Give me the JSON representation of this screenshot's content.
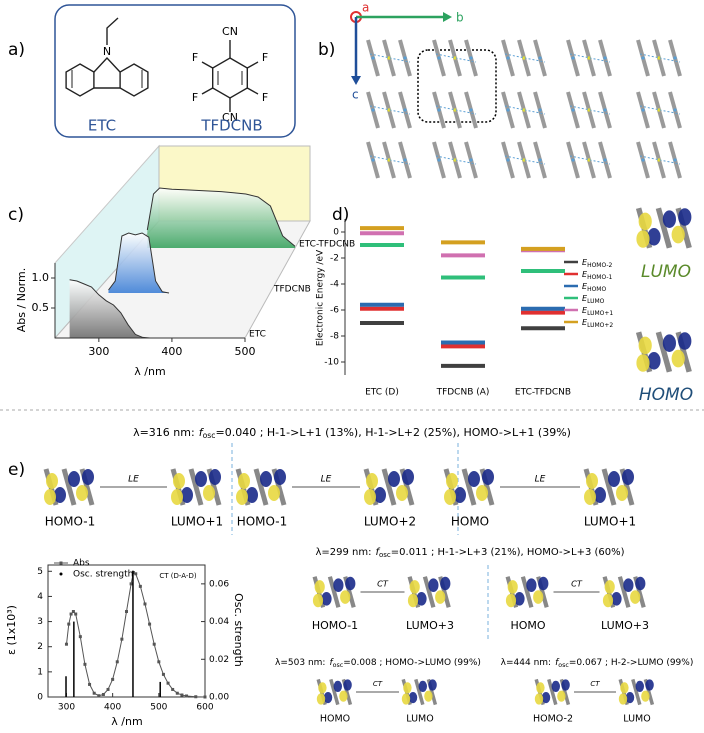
{
  "panel_labels": [
    "a)",
    "b)",
    "c)",
    "d)",
    "e)"
  ],
  "molecules": [
    {
      "name": "ETC",
      "atoms": [
        "N"
      ]
    },
    {
      "name": "TFDCNB",
      "atoms": [
        "CN",
        "F",
        "F",
        "F",
        "F",
        "CN"
      ]
    }
  ],
  "crystal_axes": [
    "a",
    "b",
    "c"
  ],
  "chart_data": [
    {
      "type": "waterfall",
      "ylabel": "Abs / Norm.",
      "xlabel": "λ /nm",
      "xlim": [
        240,
        500
      ],
      "xticks": [
        300,
        400,
        500
      ],
      "ylim": [
        0,
        1.25
      ],
      "yticks": [
        {
          "value": 0.5,
          "label": "0.5"
        },
        {
          "value": 1,
          "label": "1.0"
        }
      ],
      "series": [
        {
          "name": "ETC",
          "color": "#6e6e6e",
          "x": [
            260,
            270,
            280,
            290,
            300,
            310,
            320,
            330,
            340,
            350,
            360,
            370
          ],
          "values": [
            0.97,
            0.95,
            0.9,
            0.85,
            0.72,
            0.62,
            0.55,
            0.42,
            0.22,
            0.06,
            0.01,
            0
          ]
        },
        {
          "name": "TFDCNB",
          "color": "#3d7fd6",
          "x": [
            260,
            270,
            280,
            290,
            300,
            310,
            320,
            330,
            340,
            350
          ],
          "values": [
            0.05,
            0.2,
            0.95,
            1,
            0.97,
            1,
            0.93,
            0.2,
            0.02,
            0
          ]
        },
        {
          "name": "ETC-TFDCNB",
          "color": "#3aa35f",
          "x": [
            260,
            270,
            280,
            300,
            320,
            340,
            360,
            380,
            400,
            420,
            440,
            460,
            480,
            500
          ],
          "values": [
            0.3,
            0.9,
            1,
            0.98,
            0.97,
            0.96,
            0.95,
            0.94,
            0.92,
            0.9,
            0.85,
            0.7,
            0.2,
            0.03
          ]
        }
      ]
    },
    {
      "type": "energy_levels",
      "ylabel": "Electronic Energy /eV",
      "legend_symbol": "E",
      "categories": [
        "ETC (D)",
        "TFDCNB (A)",
        "ETC-TFDCNB"
      ],
      "ylim": [
        -11,
        1
      ],
      "yticks": [
        0,
        -2,
        -4,
        -6,
        -8,
        -10
      ],
      "series": [
        {
          "name": "HOMO-2",
          "color": "#404040",
          "values": [
            -7.0,
            -10.3,
            -7.4
          ]
        },
        {
          "name": "HOMO-1",
          "color": "#e03030",
          "values": [
            -5.9,
            -8.8,
            -6.2
          ]
        },
        {
          "name": "HOMO",
          "color": "#2b6cb0",
          "values": [
            -5.6,
            -8.5,
            -5.9
          ]
        },
        {
          "name": "LUMO",
          "color": "#2fbf7a",
          "values": [
            -1.0,
            -3.5,
            -3.0
          ]
        },
        {
          "name": "LUMO+1",
          "color": "#d070b0",
          "values": [
            -0.1,
            -1.8,
            -1.4
          ]
        },
        {
          "name": "LUMO+2",
          "color": "#d4a020",
          "values": [
            0.3,
            -0.8,
            -1.3
          ]
        }
      ]
    },
    {
      "type": "spectrum",
      "xlabel": "λ /nm",
      "ylabel": "ε (1x10³)",
      "y2label": "Osc. strength",
      "annotation": "CT (D-A-D)",
      "xlim": [
        260,
        600
      ],
      "xticks": [
        300,
        400,
        500,
        600
      ],
      "ylim": [
        0,
        5.25
      ],
      "yticks": [
        0,
        1,
        2,
        3,
        4,
        5
      ],
      "y2lim": [
        0,
        0.07
      ],
      "y2ticks": [
        {
          "value": 0,
          "label": "0.00"
        },
        {
          "value": 0.02,
          "label": "0.02"
        },
        {
          "value": 0.04,
          "label": "0.04"
        },
        {
          "value": 0.06,
          "label": "0.06"
        }
      ],
      "series": [
        {
          "name": "Abs",
          "color": "#555555",
          "x": [
            300,
            305,
            310,
            315,
            320,
            330,
            340,
            350,
            360,
            370,
            380,
            390,
            400,
            410,
            420,
            430,
            440,
            445,
            450,
            460,
            470,
            480,
            490,
            500,
            510,
            520,
            530,
            540,
            550,
            560,
            580,
            600
          ],
          "values": [
            2.1,
            2.9,
            3.3,
            3.4,
            3.3,
            2.4,
            1.3,
            0.5,
            0.15,
            0.05,
            0.1,
            0.3,
            0.7,
            1.4,
            2.3,
            3.4,
            4.5,
            4.95,
            4.9,
            4.4,
            3.7,
            2.9,
            2.1,
            1.4,
            0.9,
            0.55,
            0.3,
            0.15,
            0.08,
            0.04,
            0.01,
            0
          ]
        },
        {
          "name": "Osc. strength",
          "color": "#000000",
          "axis": "y2",
          "x": [
            299,
            316,
            444,
            503
          ],
          "values": [
            0.011,
            0.04,
            0.067,
            0.008
          ]
        }
      ]
    }
  ],
  "orbital_labels": [
    "LUMO",
    "HOMO"
  ],
  "transitions": [
    {
      "lambda": "λ=316 nm:",
      "f": "f",
      "sub": "osc",
      "rest": "=0.040 ; H-1->L+1 (13%), H-1->L+2 (25%), HOMO->L+1 (39%)",
      "pairs": [
        {
          "from": "HOMO-1",
          "to": "LUMO+1",
          "kind": "LE"
        },
        {
          "from": "HOMO-1",
          "to": "LUMO+2",
          "kind": "LE"
        },
        {
          "from": "HOMO",
          "to": "LUMO+1",
          "kind": "LE"
        }
      ]
    },
    {
      "lambda": "λ=299 nm:",
      "f": "f",
      "sub": "osc",
      "rest": "=0.011 ; H-1->L+3 (21%), HOMO->L+3 (60%)",
      "pairs": [
        {
          "from": "HOMO-1",
          "to": "LUMO+3",
          "kind": "CT"
        },
        {
          "from": "HOMO",
          "to": "LUMO+3",
          "kind": "CT"
        }
      ]
    },
    {
      "lambda": "λ=503 nm:",
      "f": "f",
      "sub": "osc",
      "rest": "=0.008 ; HOMO->LUMO (99%)",
      "pairs": [
        {
          "from": "HOMO",
          "to": "LUMO",
          "kind": "CT"
        }
      ]
    },
    {
      "lambda": "λ=444 nm:",
      "f": "f",
      "sub": "osc",
      "rest": "=0.067 ; H-2->LUMO (99%)",
      "pairs": [
        {
          "from": "HOMO-2",
          "to": "LUMO",
          "kind": "CT"
        }
      ]
    }
  ]
}
